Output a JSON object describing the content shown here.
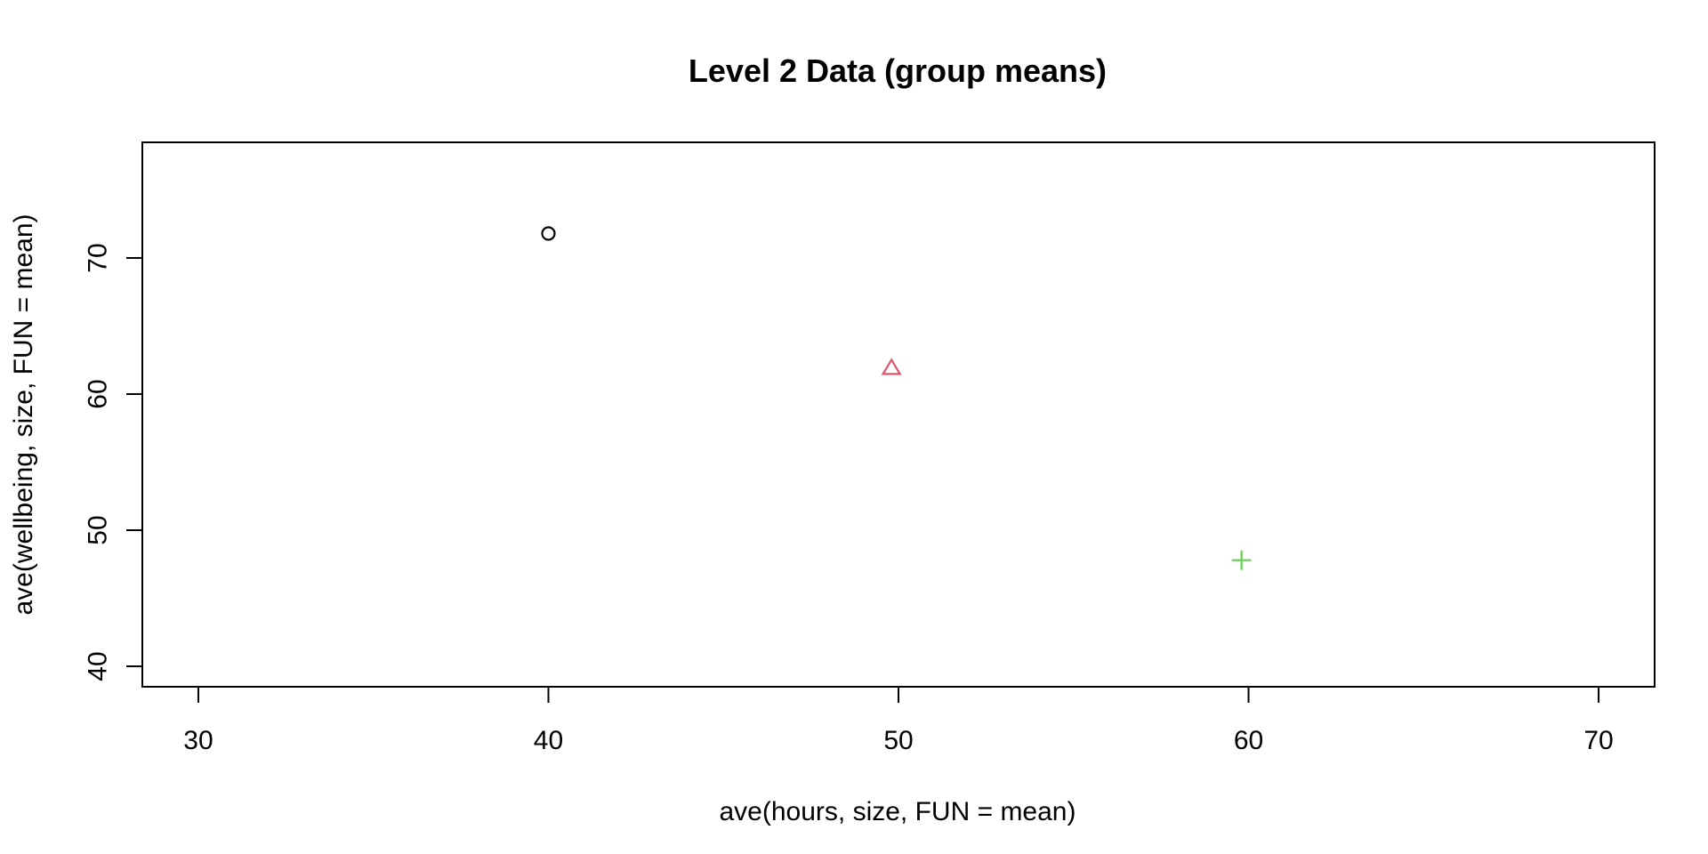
{
  "chart_data": {
    "type": "scatter",
    "title": "Level 2 Data (group means)",
    "xlabel": "ave(hours, size, FUN = mean)",
    "ylabel": "ave(wellbeing, size, FUN = mean)",
    "xlim": [
      28.4,
      71.6
    ],
    "ylim": [
      38.5,
      78.5
    ],
    "x_ticks": [
      30,
      40,
      50,
      60,
      70
    ],
    "y_ticks": [
      40,
      50,
      60,
      70
    ],
    "grid": false,
    "points": [
      {
        "x": 40.0,
        "y": 71.8,
        "marker": "circle",
        "color": "#000000"
      },
      {
        "x": 49.8,
        "y": 61.9,
        "marker": "triangle",
        "color": "#DF536B"
      },
      {
        "x": 59.8,
        "y": 47.8,
        "marker": "plus",
        "color": "#61D04F"
      }
    ]
  }
}
